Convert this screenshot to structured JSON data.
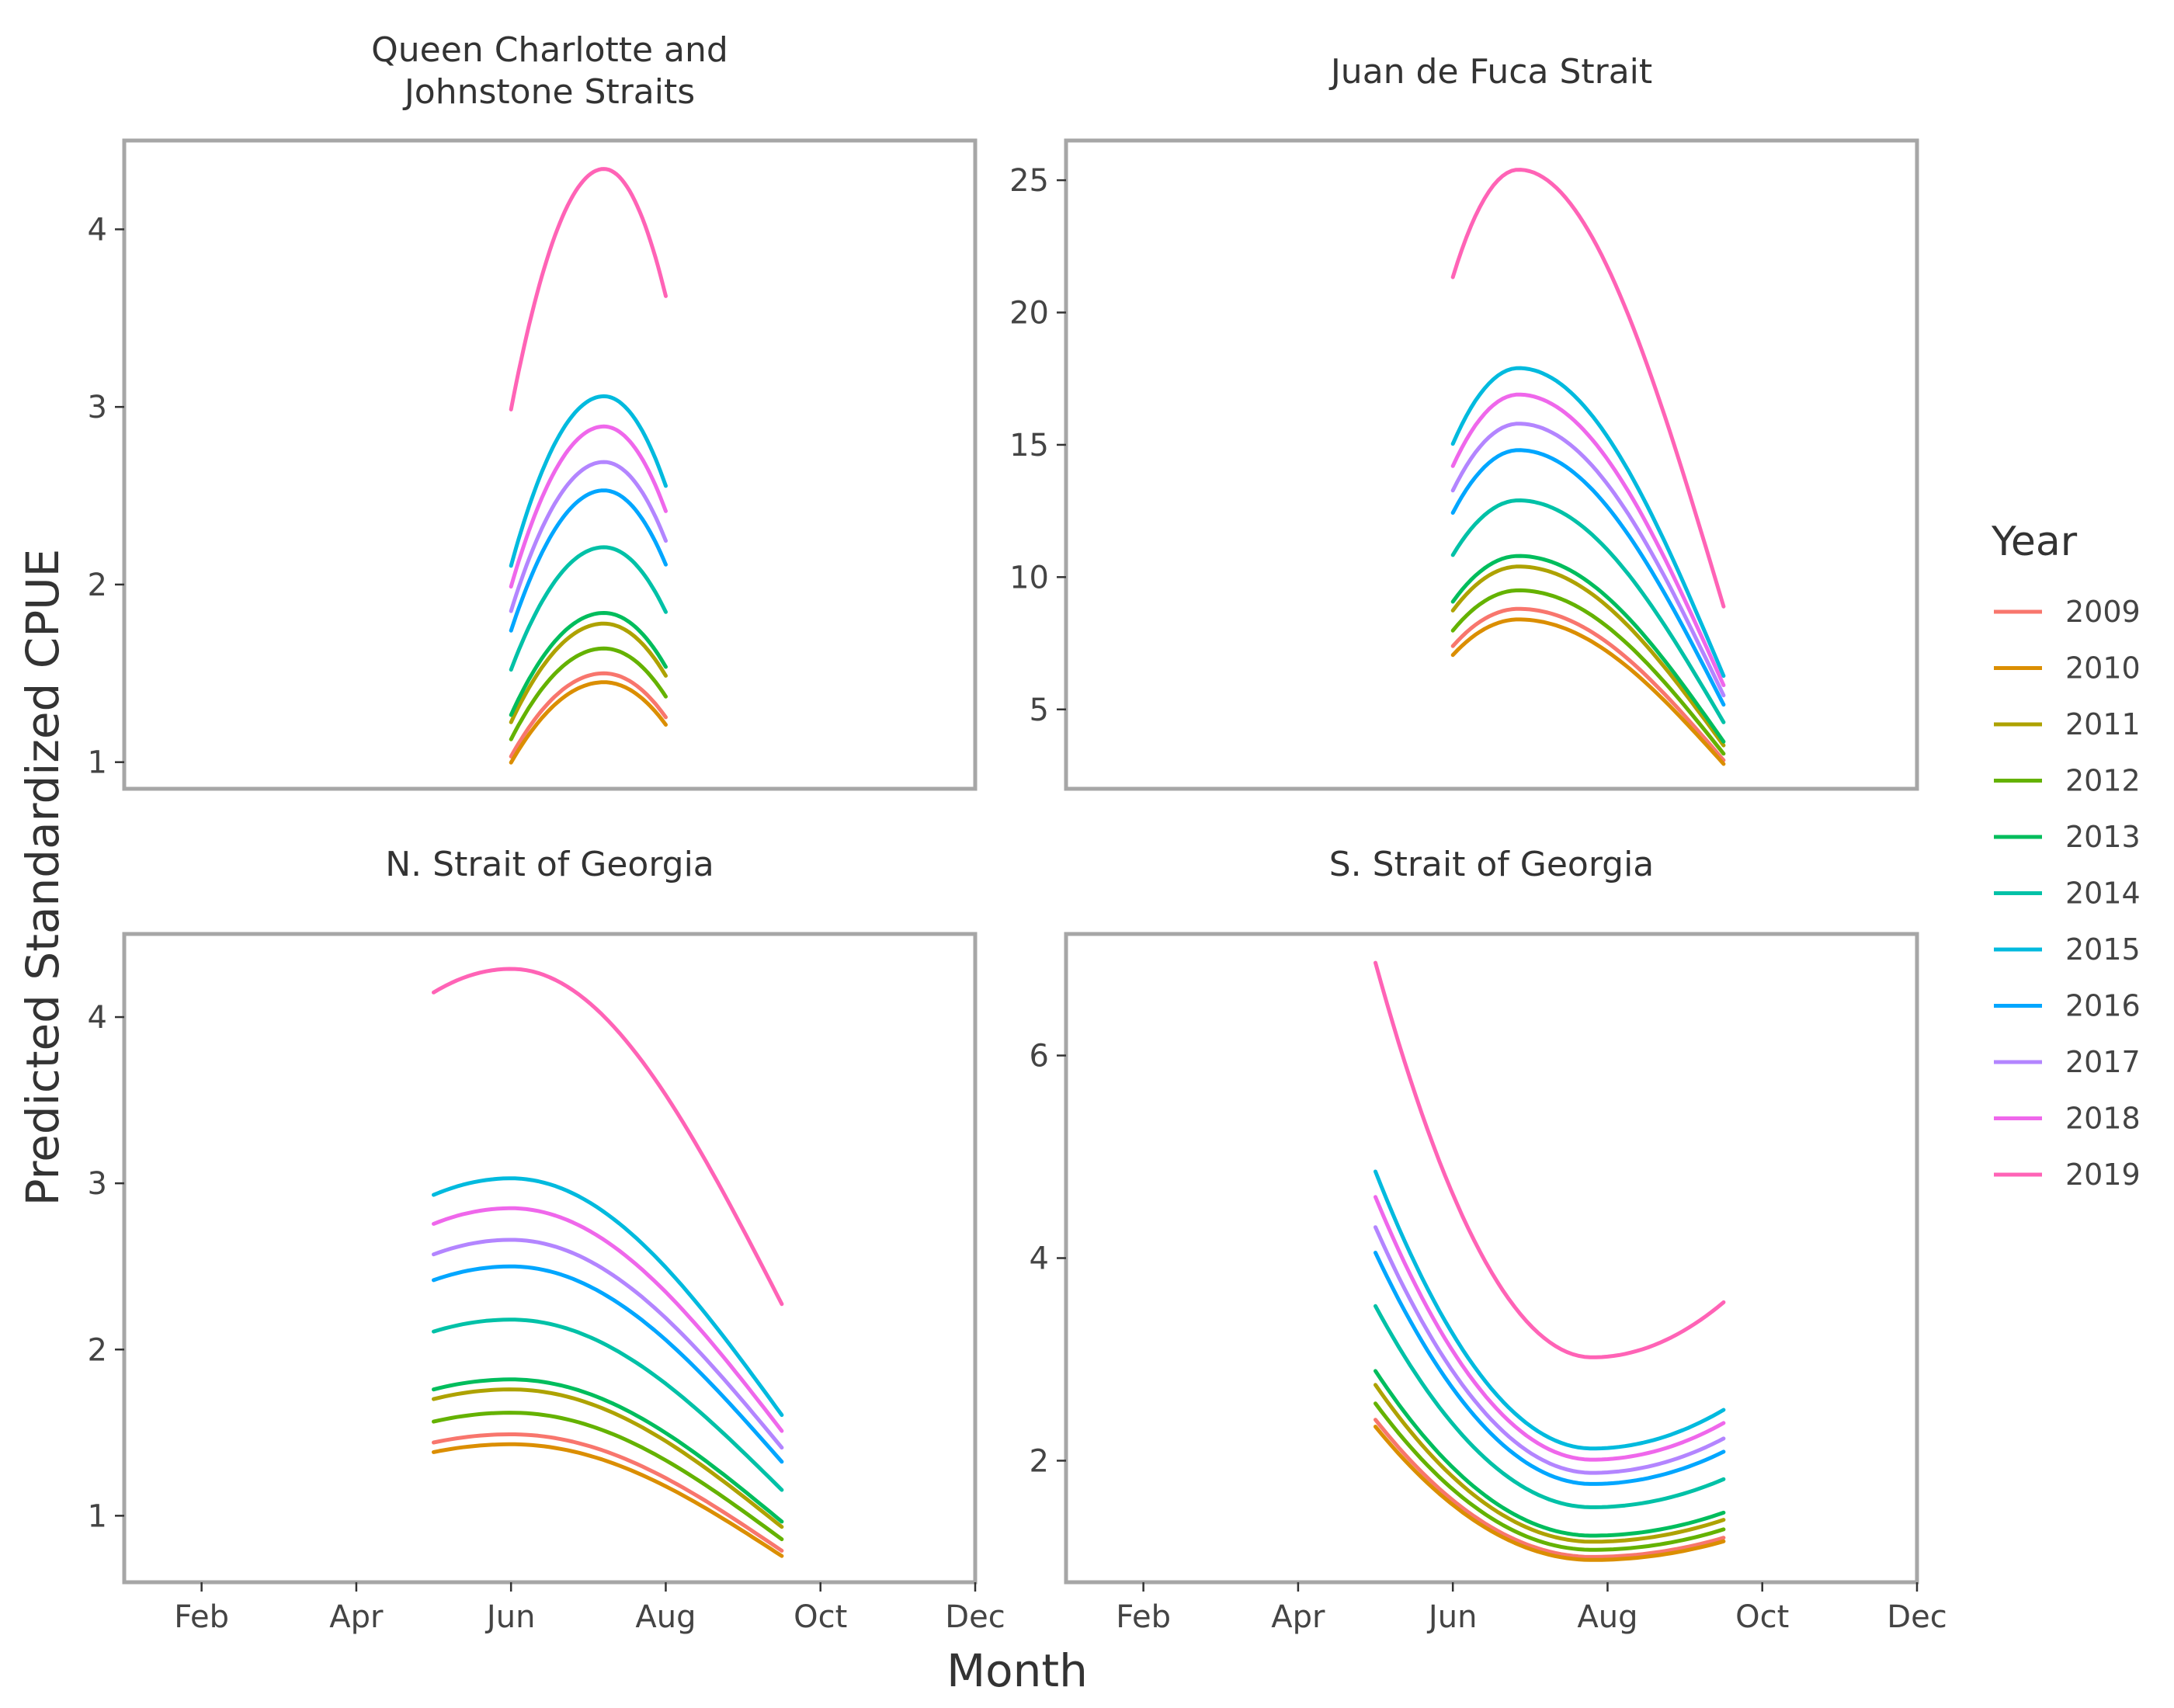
{
  "chart_data": {
    "type": "line",
    "xlabel": "Month",
    "ylabel": "Predicted Standardized CPUE",
    "x_ticks": [
      "Feb",
      "Apr",
      "Jun",
      "Aug",
      "Oct",
      "Dec"
    ],
    "x_tick_values": [
      2,
      4,
      6,
      8,
      10,
      12
    ],
    "xlim": [
      1,
      12
    ],
    "legend": {
      "title": "Year",
      "position": "right"
    },
    "grid": false,
    "colors": {
      "2009": "#F8766D",
      "2010": "#DB8E00",
      "2011": "#AEA200",
      "2012": "#64B200",
      "2013": "#00BD5C",
      "2014": "#00C1A7",
      "2015": "#00BADE",
      "2016": "#00A6FF",
      "2017": "#B385FF",
      "2018": "#EF67EB",
      "2019": "#FF63B6"
    },
    "panels": [
      {
        "title": "Queen Charlotte and\nJohnstone Straits",
        "ylim": [
          0.85,
          4.5
        ],
        "y_ticks": [
          1,
          2,
          3,
          4
        ],
        "x_range": [
          6,
          8
        ],
        "shape": {
          "type": "peak",
          "peak_x": 7.2,
          "end_ratio_right": 0.835,
          "start_ratio": 0.688
        },
        "series": [
          {
            "name": "2009",
            "peak": 1.5
          },
          {
            "name": "2010",
            "peak": 1.45
          },
          {
            "name": "2011",
            "peak": 1.78
          },
          {
            "name": "2012",
            "peak": 1.64
          },
          {
            "name": "2013",
            "peak": 1.84
          },
          {
            "name": "2014",
            "peak": 2.21
          },
          {
            "name": "2015",
            "peak": 3.06
          },
          {
            "name": "2016",
            "peak": 2.53
          },
          {
            "name": "2017",
            "peak": 2.69
          },
          {
            "name": "2018",
            "peak": 2.89
          },
          {
            "name": "2019",
            "peak": 4.34
          }
        ]
      },
      {
        "title": "Juan de Fuca Strait",
        "ylim": [
          2,
          26.5
        ],
        "y_ticks": [
          5,
          10,
          15,
          20,
          25
        ],
        "x_range": [
          6,
          9.5
        ],
        "shape": {
          "type": "peak",
          "peak_x": 6.85,
          "start_ratio": 0.84,
          "end_ratio_right": 0.35
        },
        "series": [
          {
            "name": "2009",
            "peak": 8.8
          },
          {
            "name": "2010",
            "peak": 8.4
          },
          {
            "name": "2011",
            "peak": 10.4
          },
          {
            "name": "2012",
            "peak": 9.5
          },
          {
            "name": "2013",
            "peak": 10.8
          },
          {
            "name": "2014",
            "peak": 12.9
          },
          {
            "name": "2015",
            "peak": 17.9
          },
          {
            "name": "2016",
            "peak": 14.8
          },
          {
            "name": "2017",
            "peak": 15.8
          },
          {
            "name": "2018",
            "peak": 16.9
          },
          {
            "name": "2019",
            "peak": 25.4
          }
        ]
      },
      {
        "title": "N. Strait of Georgia",
        "ylim": [
          0.6,
          4.5
        ],
        "y_ticks": [
          1,
          2,
          3,
          4
        ],
        "x_range": [
          5,
          9.5
        ],
        "shape": {
          "type": "peak",
          "peak_x": 6.0,
          "start_ratio": 0.967,
          "end_ratio_right": 0.53
        },
        "series": [
          {
            "name": "2009",
            "peak": 1.49
          },
          {
            "name": "2010",
            "peak": 1.43
          },
          {
            "name": "2011",
            "peak": 1.76
          },
          {
            "name": "2012",
            "peak": 1.62
          },
          {
            "name": "2013",
            "peak": 1.82
          },
          {
            "name": "2014",
            "peak": 2.18
          },
          {
            "name": "2015",
            "peak": 3.03
          },
          {
            "name": "2016",
            "peak": 2.5
          },
          {
            "name": "2017",
            "peak": 2.66
          },
          {
            "name": "2018",
            "peak": 2.85
          },
          {
            "name": "2019",
            "peak": 4.29
          }
        ]
      },
      {
        "title": "S. Strait of Georgia",
        "ylim": [
          0.8,
          7.2
        ],
        "y_ticks": [
          2,
          4,
          6
        ],
        "x_range": [
          5,
          9.5
        ],
        "shape": {
          "type": "trough",
          "min_x": 7.8,
          "start_ratio": 2.29,
          "end_ratio_right": 1.18
        },
        "series": [
          {
            "name": "2009",
            "min": 1.05
          },
          {
            "name": "2010",
            "min": 1.02
          },
          {
            "name": "2011",
            "min": 1.2
          },
          {
            "name": "2012",
            "min": 1.12
          },
          {
            "name": "2013",
            "min": 1.26
          },
          {
            "name": "2014",
            "min": 1.54
          },
          {
            "name": "2015",
            "min": 2.12
          },
          {
            "name": "2016",
            "min": 1.77
          },
          {
            "name": "2017",
            "min": 1.88
          },
          {
            "name": "2018",
            "min": 2.01
          },
          {
            "name": "2019",
            "min": 3.02
          }
        ]
      }
    ]
  }
}
